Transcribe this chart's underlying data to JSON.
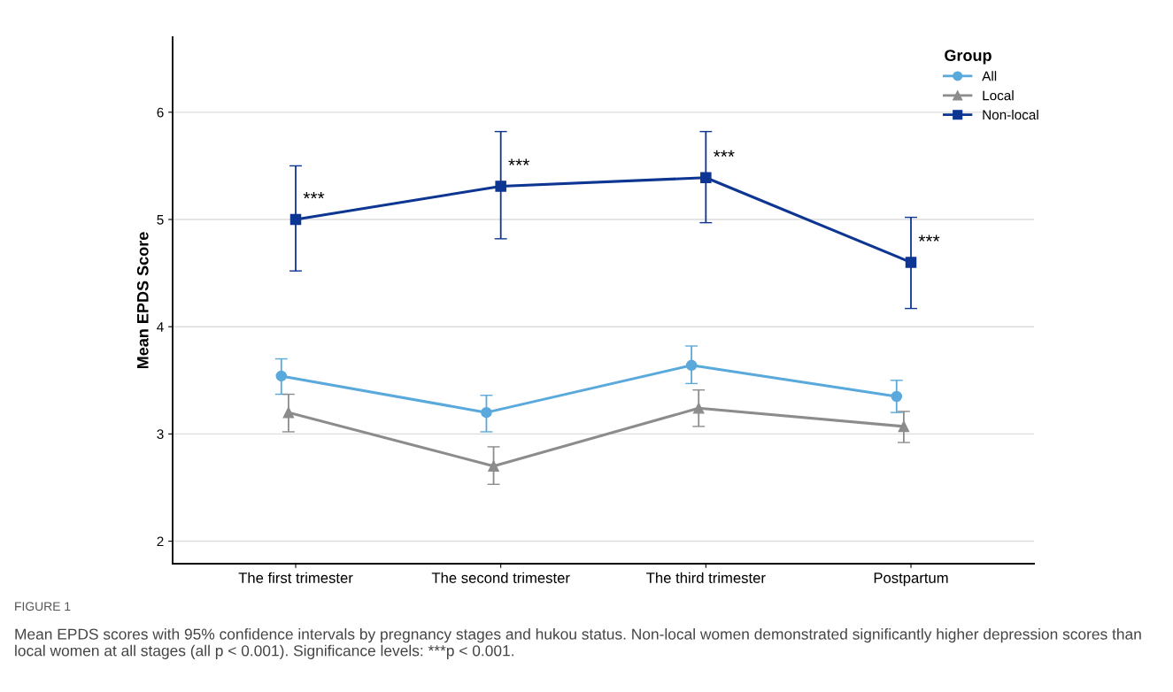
{
  "chart_data": {
    "type": "line",
    "ylabel": "Mean EPDS Score",
    "legend_title": "Group",
    "legend": "top right",
    "grid": "y",
    "categories": [
      "The first trimester",
      "The second trimester",
      "The third trimester",
      "Postpartum"
    ],
    "ylim": [
      1.79,
      6.7
    ],
    "yticks": [
      2,
      3,
      4,
      5,
      6
    ],
    "series": [
      {
        "name": "All",
        "color": "#5aa9dc",
        "marker": "circle",
        "values": [
          3.54,
          3.2,
          3.64,
          3.35
        ],
        "errors": [
          [
            3.37,
            3.7
          ],
          [
            3.02,
            3.36
          ],
          [
            3.47,
            3.82
          ],
          [
            3.2,
            3.5
          ]
        ]
      },
      {
        "name": "Local",
        "color": "#8c8c8c",
        "marker": "triangle",
        "values": [
          3.2,
          2.7,
          3.24,
          3.07
        ],
        "errors": [
          [
            3.02,
            3.37
          ],
          [
            2.53,
            2.88
          ],
          [
            3.07,
            3.41
          ],
          [
            2.92,
            3.21
          ]
        ]
      },
      {
        "name": "Non-local",
        "color": "#0d3592",
        "marker": "square",
        "values": [
          5.0,
          5.31,
          5.39,
          4.6
        ],
        "errors": [
          [
            4.52,
            5.5
          ],
          [
            4.82,
            5.82
          ],
          [
            4.97,
            5.82
          ],
          [
            4.17,
            5.02
          ]
        ]
      }
    ],
    "annotations": [
      {
        "text": "***",
        "x": "The first trimester",
        "y": 5.0
      },
      {
        "text": "***",
        "x": "The second trimester",
        "y": 5.31
      },
      {
        "text": "***",
        "x": "The third trimester",
        "y": 5.39
      },
      {
        "text": "***",
        "x": "Postpartum",
        "y": 4.6
      },
      "FIGURE 1",
      "Mean EPDS scores with 95% confidence intervals by pregnancy stages and hukou status. Non-local women demonstrated significantly higher depression scores than local women at all stages (all p < 0.001). Significance levels: ***p < 0.001."
    ]
  }
}
